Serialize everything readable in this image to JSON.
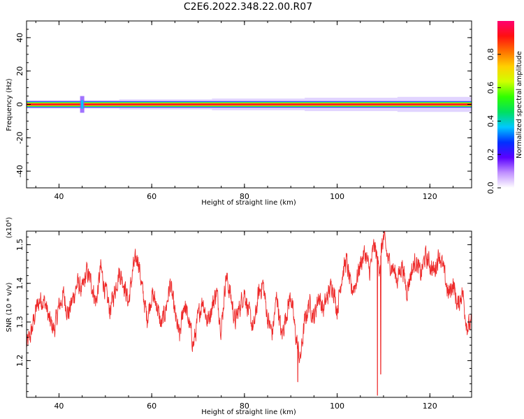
{
  "title": "C2E6.2022.348.22.00.R07",
  "chart_data": [
    {
      "type": "heatmap",
      "xlabel": "Height of straight line (km)",
      "ylabel": "Frequency (Hz)",
      "xlim": [
        33,
        129
      ],
      "ylim": [
        -50,
        50
      ],
      "xticks": [
        40,
        60,
        80,
        100,
        120
      ],
      "yticks": [
        40,
        20,
        0,
        -20,
        -40
      ],
      "ytick_labels": [
        "40",
        "20",
        "0",
        "-20",
        "-40"
      ],
      "band_center_hz": 0,
      "band_halfwidth_hz": [
        2.5,
        3.0,
        3.5,
        4.0,
        4.5
      ],
      "spike_x_km": 45,
      "colorbar": {
        "label": "Normalized spectral amplitude",
        "range": [
          0.0,
          1.0
        ],
        "ticks": [
          0.0,
          0.2,
          0.4,
          0.6,
          0.8
        ],
        "tick_labels": [
          "0.0",
          "0.2",
          "0.4",
          "0.6",
          "0.8"
        ],
        "colormap": [
          "#ffffff",
          "#c090ff",
          "#5a00ff",
          "#0030ff",
          "#00c8ff",
          "#00e060",
          "#30ff00",
          "#d0ff00",
          "#ffd000",
          "#ff7000",
          "#ff1010",
          "#ff0070"
        ]
      }
    },
    {
      "type": "line",
      "color": "#ee2a2a",
      "xlabel": "Height of straight line (km)",
      "ylabel": "SNR (10 * v/v)",
      "yscale_label": "(x10⁴)",
      "xlim": [
        33,
        129
      ],
      "ylim": [
        1.105,
        1.535
      ],
      "xticks": [
        40,
        60,
        80,
        100,
        120
      ],
      "yticks": [
        1.2,
        1.3,
        1.4,
        1.5
      ],
      "ytick_labels": [
        "1.2",
        "1.3",
        "1.4",
        "1.5"
      ],
      "x": [
        33,
        34,
        35,
        36,
        37,
        38,
        39,
        40,
        41,
        42,
        43,
        44,
        45,
        46,
        47,
        48,
        49,
        50,
        51,
        52,
        53,
        54,
        55,
        56,
        57,
        58,
        59,
        60,
        61,
        62,
        63,
        64,
        65,
        66,
        67,
        68,
        69,
        70,
        71,
        72,
        73,
        74,
        75,
        76,
        77,
        78,
        79,
        80,
        81,
        82,
        83,
        84,
        85,
        86,
        87,
        88,
        89,
        90,
        91,
        92,
        93,
        94,
        95,
        96,
        97,
        98,
        99,
        100,
        101,
        102,
        103,
        104,
        105,
        106,
        107,
        108,
        109,
        110,
        111,
        112,
        113,
        114,
        115,
        116,
        117,
        118,
        119,
        120,
        121,
        122,
        123,
        124,
        125,
        126,
        127,
        128,
        129
      ],
      "y": [
        1.24,
        1.27,
        1.33,
        1.36,
        1.35,
        1.3,
        1.28,
        1.34,
        1.37,
        1.32,
        1.36,
        1.4,
        1.38,
        1.43,
        1.4,
        1.35,
        1.44,
        1.38,
        1.33,
        1.38,
        1.43,
        1.4,
        1.35,
        1.44,
        1.47,
        1.38,
        1.31,
        1.37,
        1.35,
        1.29,
        1.33,
        1.4,
        1.32,
        1.26,
        1.35,
        1.3,
        1.24,
        1.31,
        1.36,
        1.3,
        1.34,
        1.38,
        1.28,
        1.42,
        1.37,
        1.3,
        1.34,
        1.38,
        1.32,
        1.28,
        1.37,
        1.4,
        1.31,
        1.27,
        1.37,
        1.26,
        1.32,
        1.37,
        1.27,
        1.2,
        1.3,
        1.35,
        1.31,
        1.37,
        1.33,
        1.37,
        1.4,
        1.33,
        1.42,
        1.46,
        1.38,
        1.4,
        1.45,
        1.48,
        1.43,
        1.5,
        1.44,
        1.52,
        1.46,
        1.44,
        1.41,
        1.45,
        1.38,
        1.43,
        1.46,
        1.42,
        1.47,
        1.45,
        1.43,
        1.48,
        1.43,
        1.37,
        1.4,
        1.34,
        1.38,
        1.29,
        1.29
      ],
      "dips": [
        {
          "x": 91.5,
          "y": 1.145
        },
        {
          "x": 108.7,
          "y": 1.11
        },
        {
          "x": 109.4,
          "y": 1.165
        }
      ]
    }
  ]
}
